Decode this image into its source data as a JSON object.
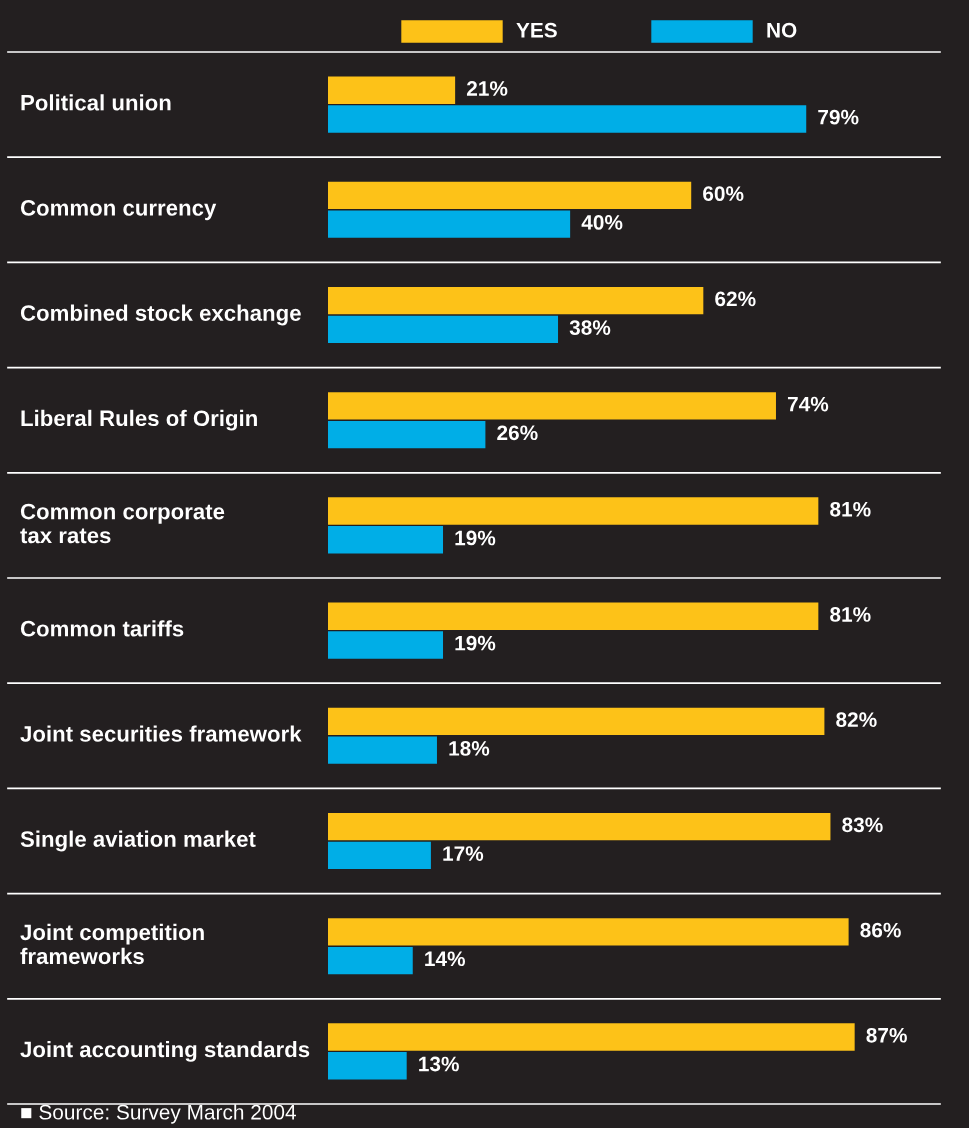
{
  "chart_data": {
    "type": "bar",
    "orientation": "horizontal",
    "categories": [
      "Political union",
      "Common currency",
      "Combined stock exchange",
      "Liberal Rules of Origin",
      "Common corporate\ntax rates",
      "Common tariffs",
      "Joint securities framework",
      "Single aviation market",
      "Joint competition\nframeworks",
      "Joint accounting standards"
    ],
    "series": [
      {
        "name": "YES",
        "color": "#fdc218",
        "values": [
          21,
          60,
          62,
          74,
          81,
          81,
          82,
          83,
          86,
          87
        ],
        "value_labels": [
          "21%",
          "60%",
          "62%",
          "74%",
          "81%",
          "81%",
          "82%",
          "83%",
          "86%",
          "87%"
        ]
      },
      {
        "name": "NO",
        "color": "#00aee7",
        "values": [
          79,
          40,
          38,
          26,
          19,
          19,
          18,
          17,
          14,
          13
        ],
        "value_labels": [
          "79%",
          "40%",
          "38%",
          "26%",
          "19%",
          "19%",
          "18%",
          "17%",
          "14%",
          "13%"
        ]
      }
    ],
    "legend": "top",
    "annotations": [
      "■ Source: Survey March 2004"
    ]
  }
}
